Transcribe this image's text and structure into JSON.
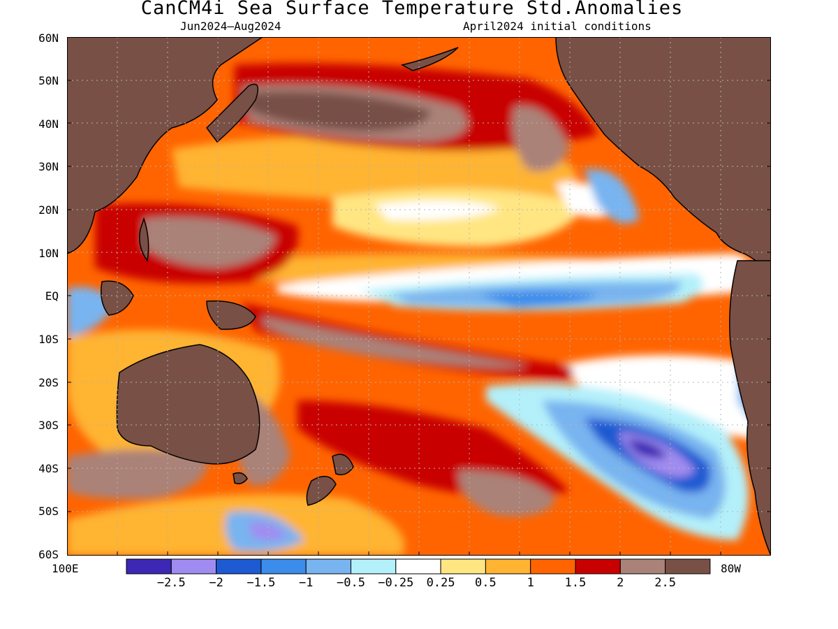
{
  "title": "CanCM4i Sea Surface Temperature Std.Anomalies",
  "subtitle_left": "Jun2024–Aug2024",
  "subtitle_right": "April2024 initial conditions",
  "lat_labels": [
    "60N",
    "50N",
    "40N",
    "30N",
    "20N",
    "10N",
    "EQ",
    "10S",
    "20S",
    "30S",
    "40S",
    "50S",
    "60S"
  ],
  "lon_left": "100E",
  "lon_right": "80W",
  "colorbar": {
    "colors": [
      "#3c28b4",
      "#a08cf0",
      "#1e5ad2",
      "#3c8ceb",
      "#78b4f0",
      "#b4f0fa",
      "#ffffff",
      "#ffe682",
      "#ffb432",
      "#ff6400",
      "#c80000",
      "#aa8278",
      "#785046"
    ],
    "labels": [
      "−2.5",
      "−2",
      "−1.5",
      "−1",
      "−0.5",
      "−0.25",
      "0.25",
      "0.5",
      "1",
      "1.5",
      "2",
      "2.5"
    ]
  },
  "colors": {
    "land": "#785046",
    "coast": "#000000",
    "grid": "#b4b4b4"
  }
}
